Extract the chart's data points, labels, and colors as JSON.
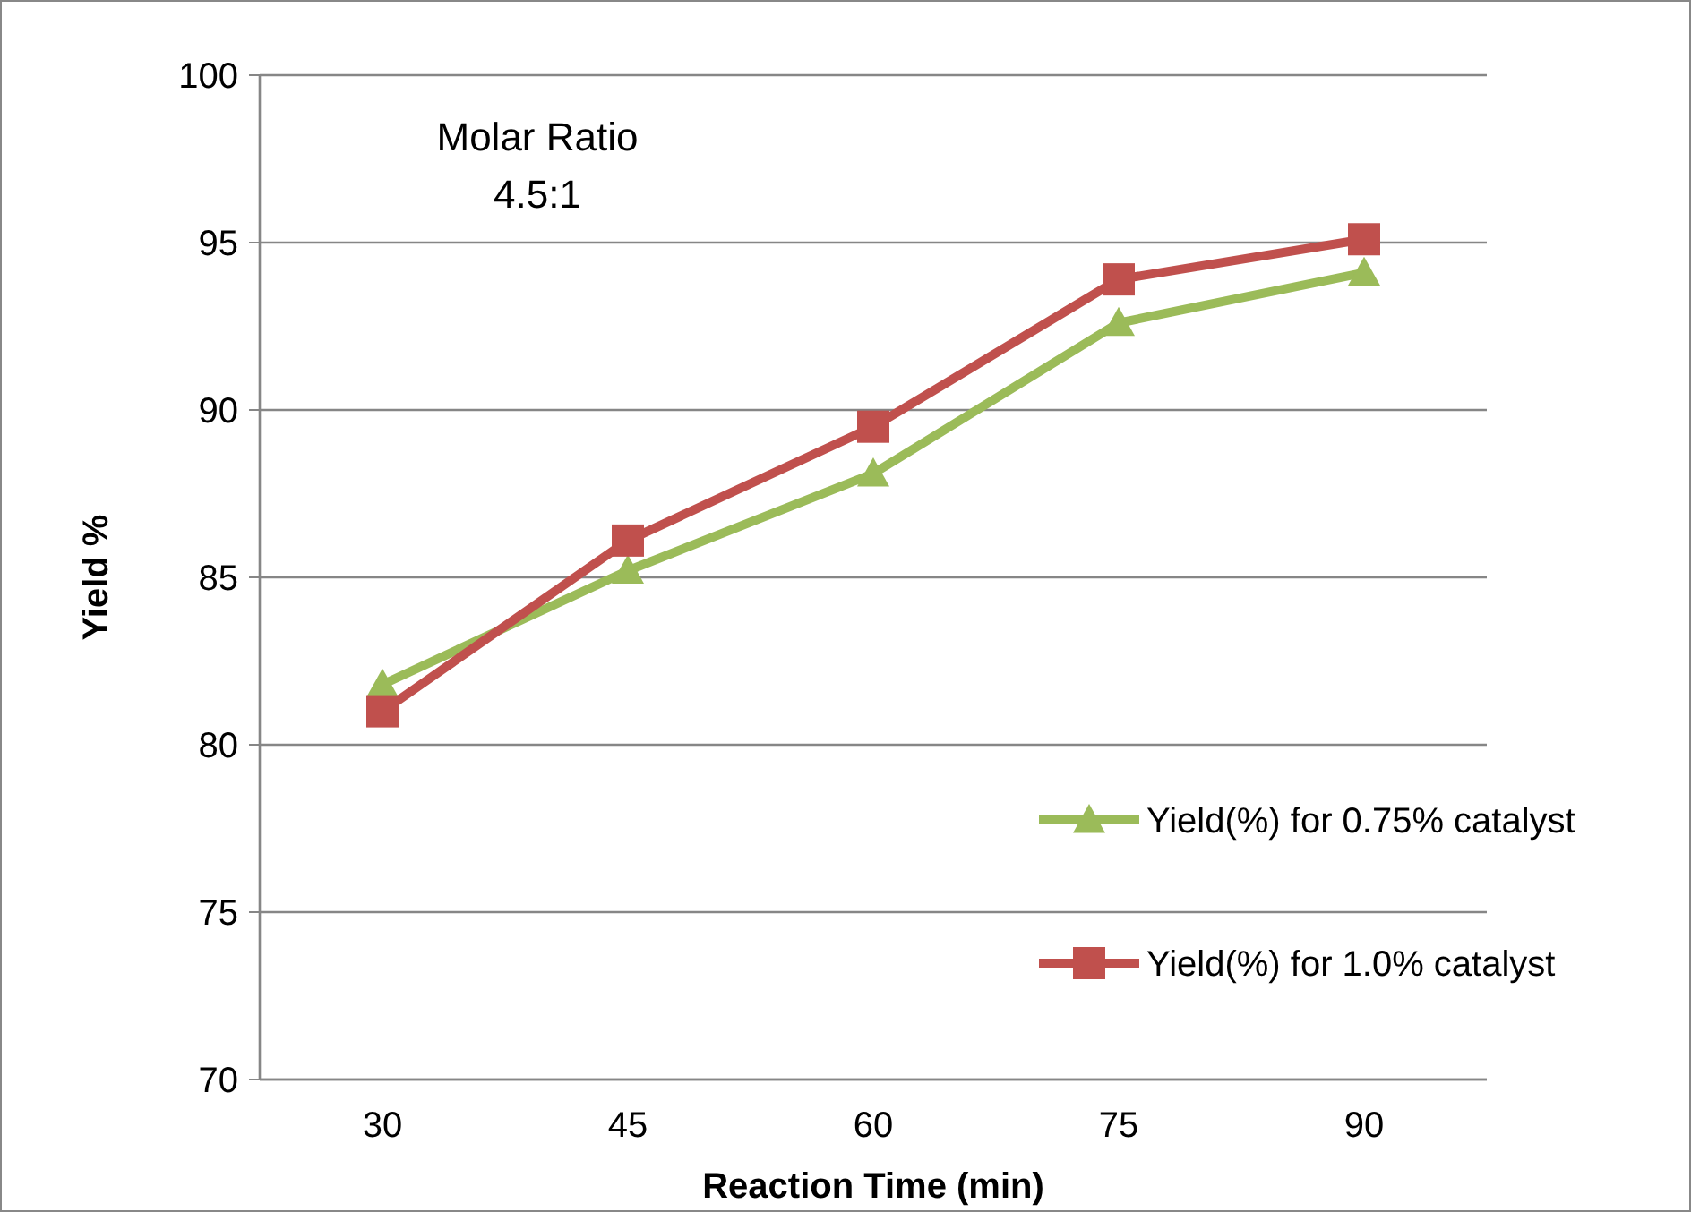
{
  "chart_data": {
    "type": "line",
    "xlabel": "Reaction Time (min)",
    "ylabel": "Yield %",
    "categories": [
      "30",
      "45",
      "60",
      "75",
      "90"
    ],
    "series": [
      {
        "name": "Yield(%) for 0.75% catalyst",
        "color": "#9bbb59",
        "marker": "triangle",
        "values": [
          81.8,
          85.2,
          88.1,
          92.6,
          94.1
        ]
      },
      {
        "name": "Yield(%) for 1.0% catalyst",
        "color": "#c0504d",
        "marker": "square",
        "values": [
          81.0,
          86.1,
          89.5,
          93.9,
          95.1
        ]
      }
    ],
    "ylim": [
      70,
      100
    ],
    "yticks": [
      70,
      75,
      80,
      85,
      90,
      95,
      100
    ],
    "grid": "y",
    "legend": "right",
    "line_style": "solid",
    "annotations": [
      "Molar Ratio\n4.5:1"
    ]
  }
}
